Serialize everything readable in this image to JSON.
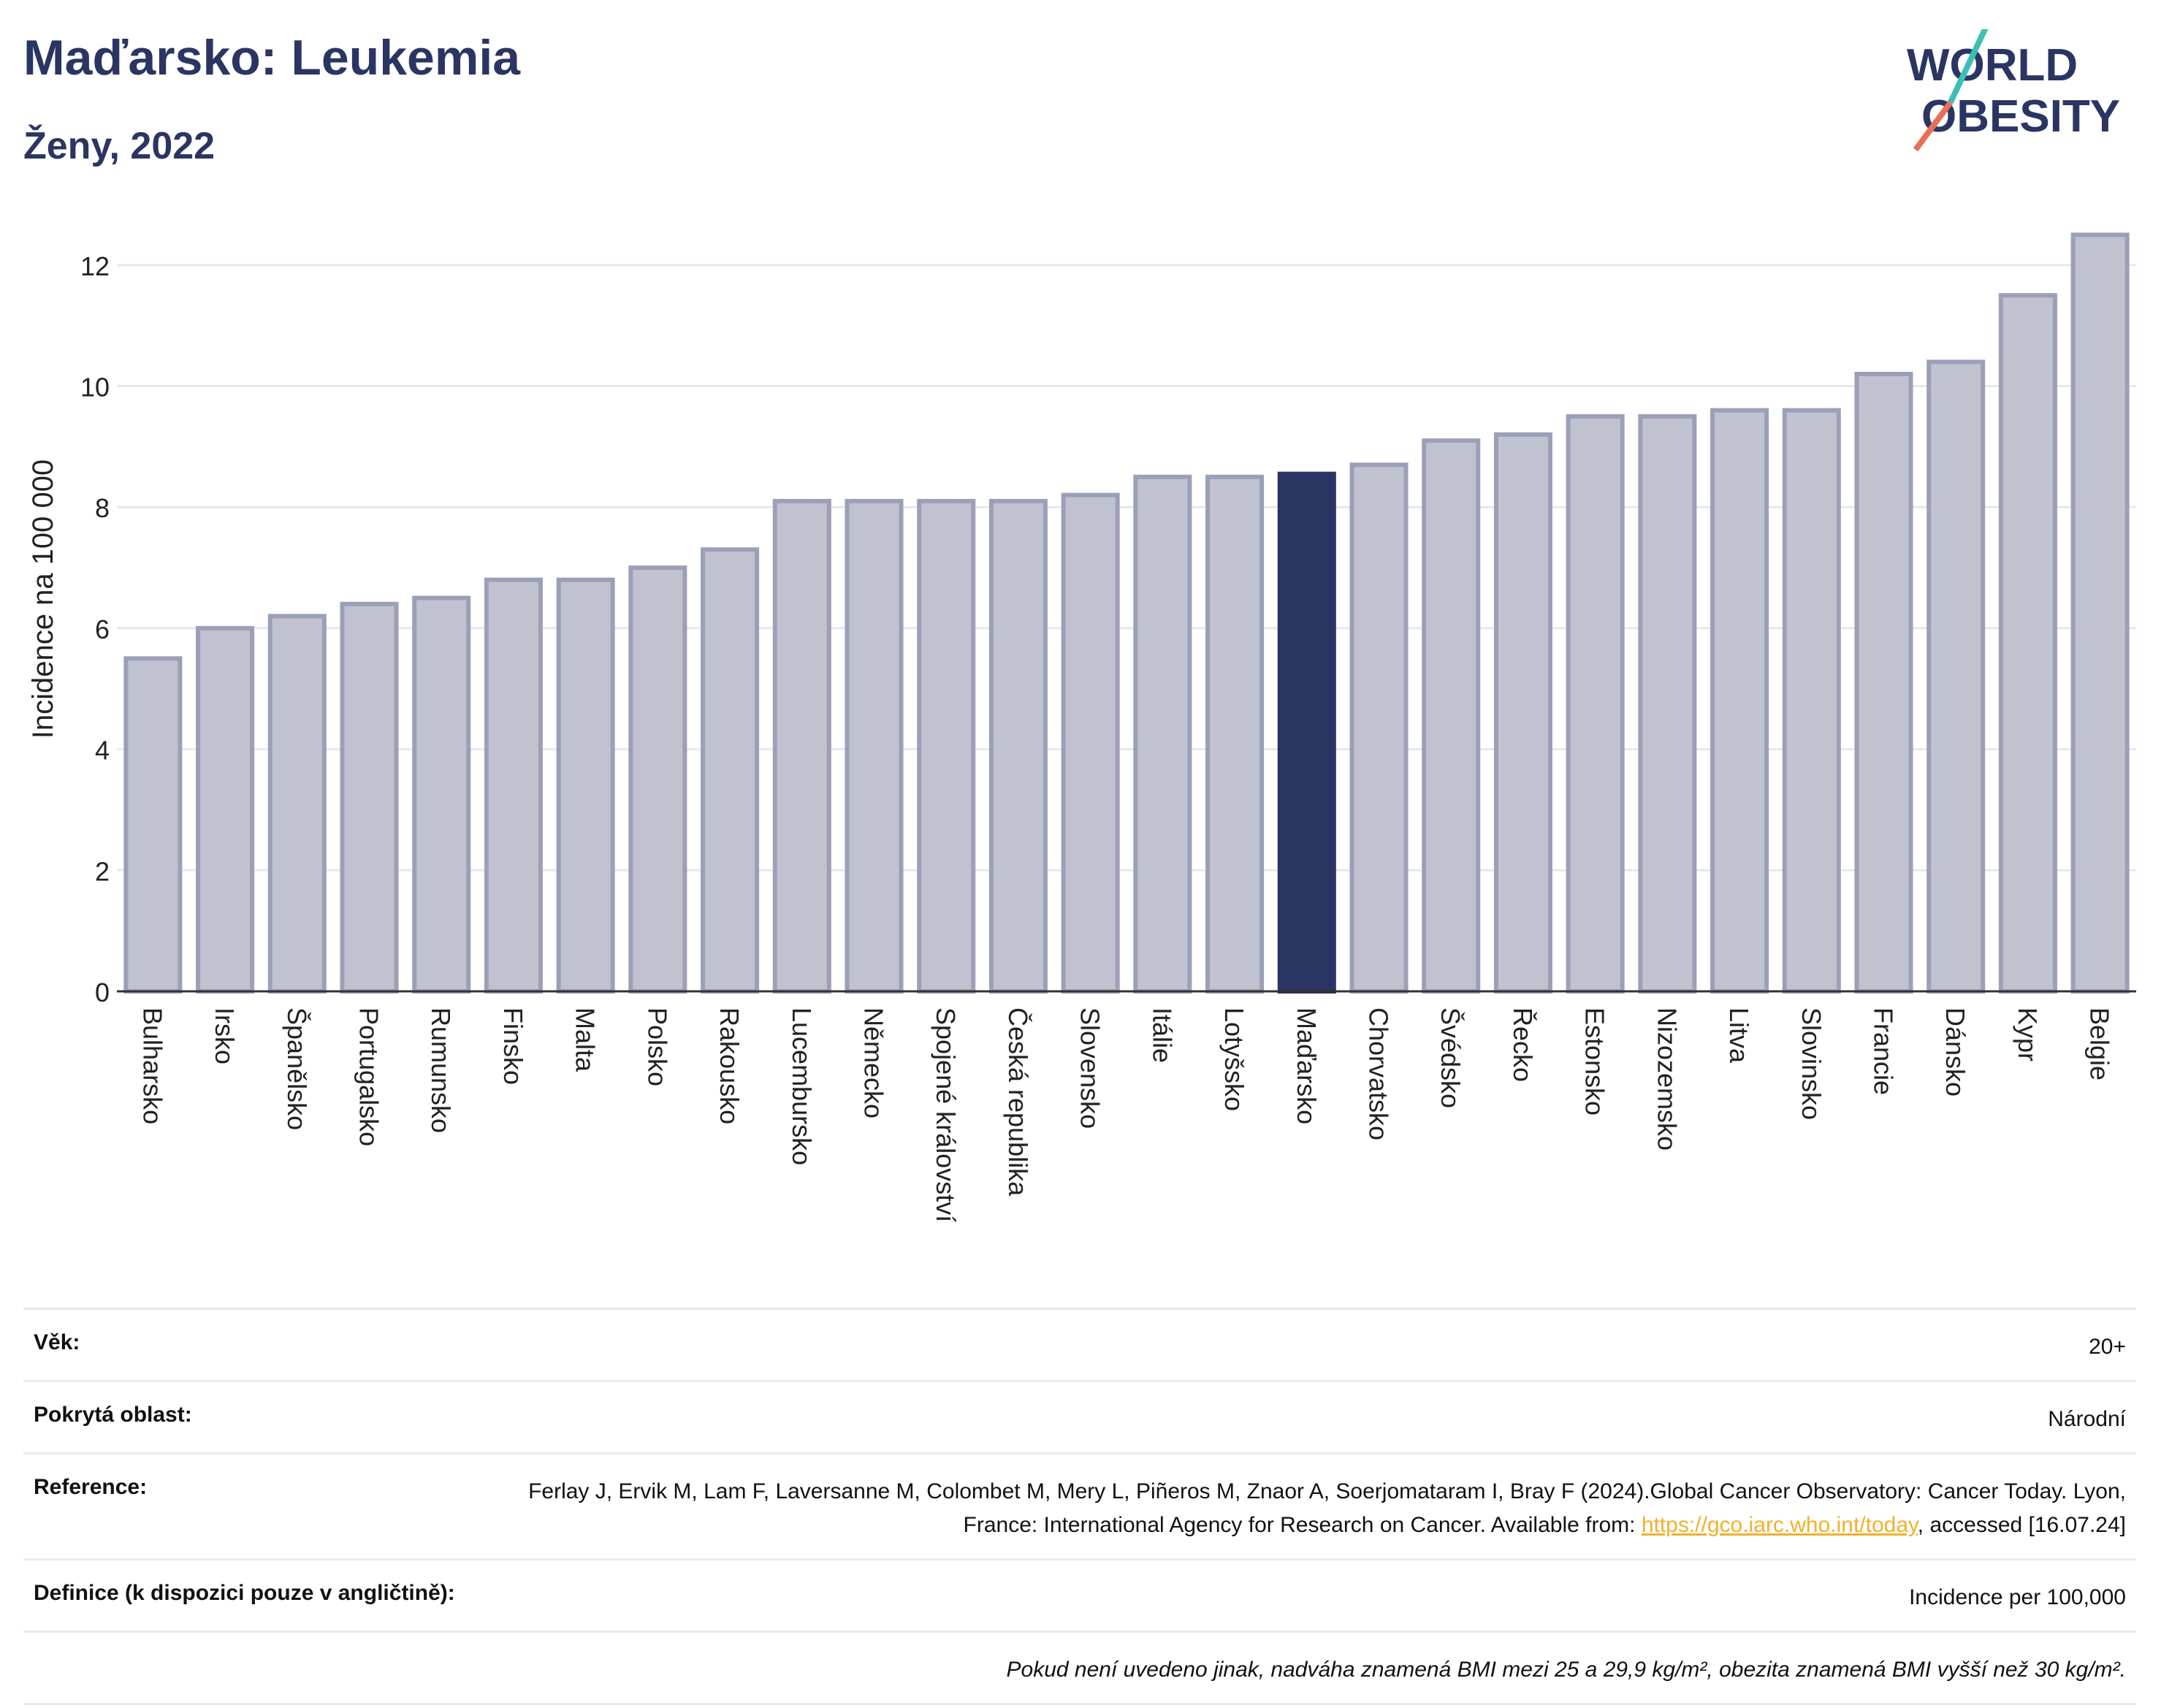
{
  "header": {
    "title": "Maďarsko: Leukemia",
    "subtitle": "Ženy, 2022",
    "logo_line1": "WORLD",
    "logo_line2": "OBESITY"
  },
  "chart_data": {
    "type": "bar",
    "ylabel": "Incidence na 100 000",
    "ylim": [
      0,
      13
    ],
    "yticks": [
      0,
      2,
      4,
      6,
      8,
      10,
      12
    ],
    "grid": true,
    "highlight": "Maďarsko",
    "categories": [
      "Bulharsko",
      "Irsko",
      "Španělsko",
      "Portugalsko",
      "Rumunsko",
      "Finsko",
      "Malta",
      "Polsko",
      "Rakousko",
      "Lucembursko",
      "Německo",
      "Spojené království",
      "Česká republika",
      "Slovensko",
      "Itálie",
      "Lotyšsko",
      "Maďarsko",
      "Chorvatsko",
      "Švédsko",
      "Řecko",
      "Estonsko",
      "Nizozemsko",
      "Litva",
      "Slovinsko",
      "Francie",
      "Dánsko",
      "Kypr",
      "Belgie"
    ],
    "values": [
      5.5,
      6.0,
      6.2,
      6.4,
      6.5,
      6.8,
      6.8,
      7.0,
      7.3,
      8.1,
      8.1,
      8.1,
      8.1,
      8.2,
      8.5,
      8.5,
      8.55,
      8.7,
      9.1,
      9.2,
      9.5,
      9.5,
      9.6,
      9.6,
      10.2,
      10.4,
      11.5,
      12.5
    ],
    "colors": {
      "bar": "#c0c3cf",
      "bar_border": "#9aa0b8",
      "highlight": "#2a3563",
      "grid": "#e6e8ef",
      "axis": "#333333"
    }
  },
  "meta": {
    "age_label": "Věk:",
    "age_value": "20+",
    "area_label": "Pokrytá oblast:",
    "area_value": "Národní",
    "reference_label": "Reference:",
    "reference_text_1": "Ferlay J, Ervik M, Lam F, Laversanne M, Colombet M, Mery L, Piñeros M, Znaor A, Soerjomataram I, Bray F (2024).Global Cancer Observatory: Cancer Today. Lyon, France: International Agency for Research on Cancer. Available from: ",
    "reference_link": "https://gco.iarc.who.int/today",
    "reference_text_2": ", accessed [16.07.24]",
    "definition_label": "Definice (k dispozici pouze v angličtině):",
    "definition_value": "Incidence per 100,000",
    "note": "Pokud není uvedeno jinak, nadváha znamená BMI mezi 25 a 29,9 kg/m², obezita znamená BMI vyšší než 30 kg/m²."
  }
}
